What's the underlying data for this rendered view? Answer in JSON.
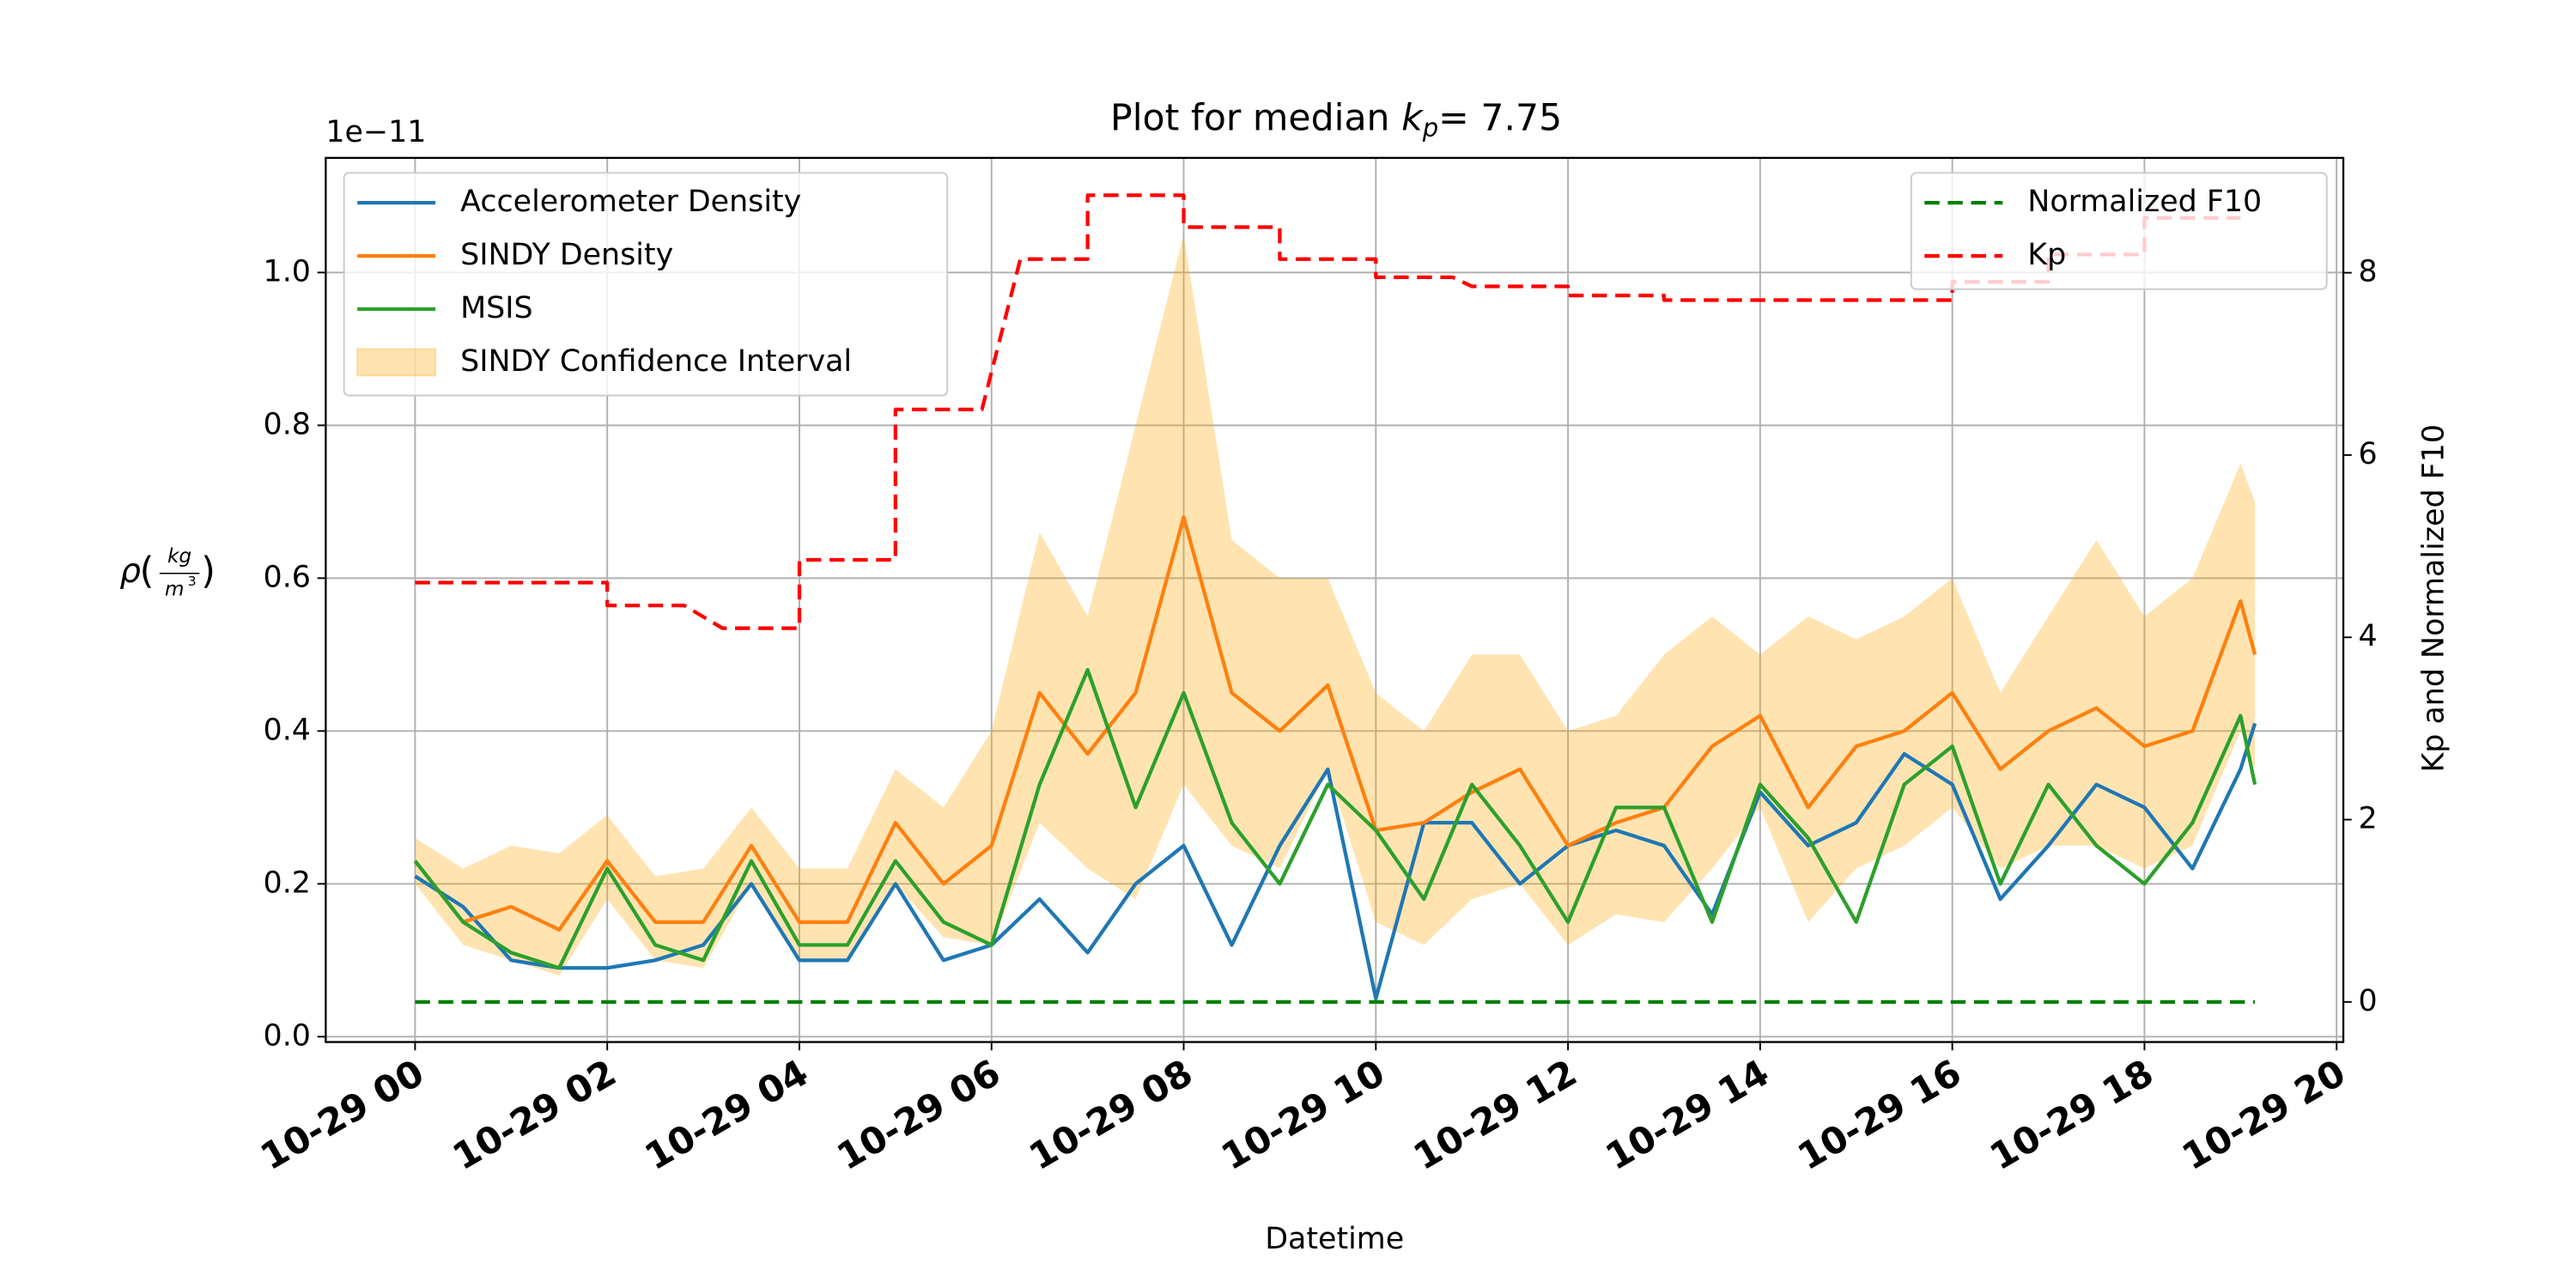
{
  "chart_data": {
    "type": "line",
    "title": {
      "text": "Plot for median",
      "symbol": "k",
      "subscript": "p",
      "rest": "= 7.75"
    },
    "xlabel": "Datetime",
    "ylabel": {
      "symbol": "ρ",
      "open": "(",
      "numerator": "kg",
      "denominator": "m",
      "exponent": "3",
      "close": ")"
    },
    "y_offset_label": "1e−11",
    "y2label": "Kp and Normalized F10",
    "grid": true,
    "legend_loc": "upper left",
    "legend2_loc": "upper right",
    "xlim": [
      -0.93,
      20.07
    ],
    "xticks": [
      {
        "value": 0,
        "label": "10-29 00"
      },
      {
        "value": 2,
        "label": "10-29 02"
      },
      {
        "value": 4,
        "label": "10-29 04"
      },
      {
        "value": 6,
        "label": "10-29 06"
      },
      {
        "value": 8,
        "label": "10-29 08"
      },
      {
        "value": 10,
        "label": "10-29 10"
      },
      {
        "value": 12,
        "label": "10-29 12"
      },
      {
        "value": 14,
        "label": "10-29 14"
      },
      {
        "value": 16,
        "label": "10-29 16"
      },
      {
        "value": 18,
        "label": "10-29 18"
      },
      {
        "value": 20,
        "label": "10-29 20"
      }
    ],
    "ylim": [
      -0.007,
      1.15
    ],
    "yticks": [
      {
        "value": 0,
        "label": "0.0"
      },
      0.2,
      0.4,
      0.6,
      0.8,
      {
        "value": 1,
        "label": "1.0"
      }
    ],
    "y2lim": [
      -0.44,
      9.26
    ],
    "y2ticks": [
      0,
      2,
      4,
      6,
      8
    ],
    "x": [
      0,
      0.5,
      1,
      1.5,
      2,
      2.5,
      3,
      3.5,
      4,
      4.5,
      5,
      5.5,
      6,
      6.5,
      7,
      7.5,
      8,
      8.5,
      9,
      9.5,
      10,
      10.5,
      11,
      11.5,
      12,
      12.5,
      13,
      13.5,
      14,
      14.5,
      15,
      15.5,
      16,
      16.5,
      17,
      17.5,
      18,
      18.5,
      19,
      19.15
    ],
    "band": {
      "name": "SINDY Confidence Interval",
      "color": "#ffa500",
      "upper": [
        0.26,
        0.22,
        0.25,
        0.24,
        0.29,
        0.21,
        0.22,
        0.3,
        0.22,
        0.22,
        0.35,
        0.3,
        0.4,
        0.66,
        0.55,
        0.8,
        1.05,
        0.65,
        0.6,
        0.6,
        0.45,
        0.4,
        0.5,
        0.5,
        0.4,
        0.42,
        0.5,
        0.55,
        0.5,
        0.55,
        0.52,
        0.55,
        0.6,
        0.45,
        0.55,
        0.65,
        0.55,
        0.6,
        0.75,
        0.7
      ],
      "lower": [
        0.2,
        0.12,
        0.1,
        0.08,
        0.18,
        0.1,
        0.09,
        0.2,
        0.1,
        0.1,
        0.2,
        0.13,
        0.12,
        0.28,
        0.22,
        0.18,
        0.33,
        0.25,
        0.22,
        0.35,
        0.15,
        0.12,
        0.18,
        0.2,
        0.12,
        0.16,
        0.15,
        0.22,
        0.3,
        0.15,
        0.22,
        0.25,
        0.3,
        0.22,
        0.25,
        0.25,
        0.22,
        0.25,
        0.4,
        0.35
      ]
    },
    "series": [
      {
        "name": "Accelerometer Density",
        "color": "#1f77b4",
        "values": [
          0.21,
          0.17,
          0.1,
          0.09,
          0.09,
          0.1,
          0.12,
          0.2,
          0.1,
          0.1,
          0.2,
          0.1,
          0.12,
          0.18,
          0.11,
          0.2,
          0.25,
          0.12,
          0.25,
          0.35,
          0.05,
          0.28,
          0.28,
          0.2,
          0.25,
          0.27,
          0.25,
          0.16,
          0.32,
          0.25,
          0.28,
          0.37,
          0.33,
          0.18,
          0.25,
          0.33,
          0.3,
          0.22,
          0.35,
          0.41
        ]
      },
      {
        "name": "SINDY Density",
        "color": "#ff7f0e",
        "values": [
          0.23,
          0.15,
          0.17,
          0.14,
          0.23,
          0.15,
          0.15,
          0.25,
          0.15,
          0.15,
          0.28,
          0.2,
          0.25,
          0.45,
          0.37,
          0.45,
          0.68,
          0.45,
          0.4,
          0.46,
          0.27,
          0.28,
          0.32,
          0.35,
          0.25,
          0.28,
          0.3,
          0.38,
          0.42,
          0.3,
          0.38,
          0.4,
          0.45,
          0.35,
          0.4,
          0.43,
          0.38,
          0.4,
          0.57,
          0.5
        ]
      },
      {
        "name": "MSIS",
        "color": "#2ca02c",
        "values": [
          0.23,
          0.15,
          0.11,
          0.09,
          0.22,
          0.12,
          0.1,
          0.23,
          0.12,
          0.12,
          0.23,
          0.15,
          0.12,
          0.33,
          0.48,
          0.3,
          0.45,
          0.28,
          0.2,
          0.33,
          0.27,
          0.18,
          0.33,
          0.25,
          0.15,
          0.3,
          0.3,
          0.15,
          0.33,
          0.26,
          0.15,
          0.33,
          0.38,
          0.2,
          0.33,
          0.25,
          0.2,
          0.28,
          0.42,
          0.33
        ]
      },
      {
        "name": "Normalized F10",
        "color": "#008000",
        "axis": "y2",
        "dashed": true,
        "x": [
          0,
          19.15
        ],
        "values": [
          0,
          0
        ]
      },
      {
        "name": "Kp",
        "color": "#ff0000",
        "axis": "y2",
        "dashed": true,
        "x": [
          0,
          2,
          2,
          2.8,
          3.2,
          4,
          4,
          5,
          5,
          5.9,
          6.3,
          7,
          7,
          8,
          8,
          9,
          9,
          10,
          10,
          10.8,
          11,
          12,
          12,
          13,
          13,
          16,
          16,
          17,
          17,
          18,
          18,
          19
        ],
        "values": [
          4.6,
          4.6,
          4.35,
          4.35,
          4.1,
          4.1,
          4.85,
          4.85,
          6.5,
          6.5,
          8.15,
          8.15,
          8.85,
          8.85,
          8.5,
          8.5,
          8.15,
          8.15,
          7.95,
          7.95,
          7.85,
          7.85,
          7.75,
          7.75,
          7.7,
          7.7,
          7.9,
          7.9,
          8.2,
          8.2,
          8.6,
          8.6
        ]
      }
    ]
  }
}
